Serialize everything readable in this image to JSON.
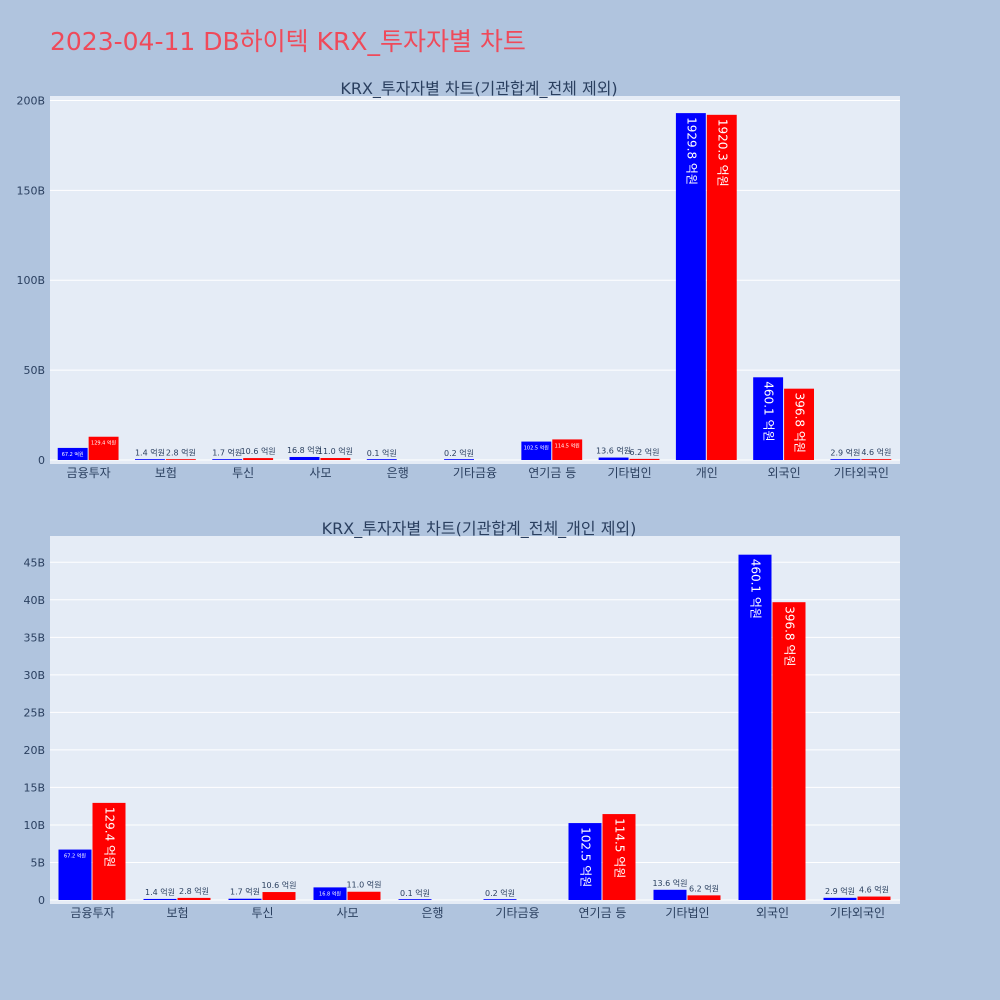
{
  "page_title": "2023-04-11 DB하이텍 KRX_투자자별 차트",
  "colors": {
    "series1": "#0000ff",
    "series2": "#ff0000",
    "plot_bg": "#e5ecf6",
    "page_bg": "#b0c4de",
    "title": "#ef4a5a"
  },
  "chart_data": [
    {
      "type": "bar",
      "title": "KRX_투자자별 차트(기관합계_전체 제외)",
      "categories": [
        "금융투자",
        "보험",
        "투신",
        "사모",
        "은행",
        "기타금융",
        "연기금 등",
        "기타법인",
        "개인",
        "외국인",
        "기타외국인"
      ],
      "series": [
        {
          "values": [
            6.72,
            0.14,
            0.17,
            1.68,
            0.01,
            0.02,
            10.25,
            1.36,
            192.98,
            46.01,
            0.29
          ],
          "labels": [
            "67.2 억원",
            "1.4 억원",
            "1.7 억원",
            "16.8 억원",
            "0.1 억원",
            "0.2 억원",
            "102.5 억원",
            "13.6 억원",
            "1929.8 억원",
            "460.1 억원",
            "2.9 억원"
          ]
        },
        {
          "values": [
            12.94,
            0.28,
            1.06,
            1.1,
            0,
            0,
            11.45,
            0.62,
            192.03,
            39.68,
            0.46
          ],
          "labels": [
            "129.4 억원",
            "2.8 억원",
            "10.6 억원",
            "11.0 억원",
            "",
            "",
            "114.5 억원",
            "6.2 억원",
            "1920.3 억원",
            "396.8 억원",
            "4.6 억원"
          ]
        }
      ],
      "yticks": [
        0,
        50,
        100,
        150,
        200
      ],
      "ytick_labels": [
        "0",
        "50B",
        "100B",
        "150B",
        "200B"
      ],
      "ylim": [
        0,
        202.5
      ],
      "grid": true
    },
    {
      "type": "bar",
      "title": "KRX_투자자별 차트(기관합계_전체_개인 제외)",
      "categories": [
        "금융투자",
        "보험",
        "투신",
        "사모",
        "은행",
        "기타금융",
        "연기금 등",
        "기타법인",
        "외국인",
        "기타외국인"
      ],
      "series": [
        {
          "values": [
            6.72,
            0.14,
            0.17,
            1.68,
            0.01,
            0.02,
            10.25,
            1.36,
            46.01,
            0.29
          ],
          "labels": [
            "67.2 억원",
            "1.4 억원",
            "1.7 억원",
            "16.8 억원",
            "0.1 억원",
            "0.2 억원",
            "102.5 억원",
            "13.6 억원",
            "460.1 억원",
            "2.9 억원"
          ]
        },
        {
          "values": [
            12.94,
            0.28,
            1.06,
            1.1,
            0,
            0,
            11.45,
            0.62,
            39.68,
            0.46
          ],
          "labels": [
            "129.4 억원",
            "2.8 억원",
            "10.6 억원",
            "11.0 억원",
            "",
            "",
            "114.5 억원",
            "6.2 억원",
            "396.8 억원",
            "4.6 억원"
          ]
        }
      ],
      "yticks": [
        0,
        5,
        10,
        15,
        20,
        25,
        30,
        35,
        40,
        45
      ],
      "ytick_labels": [
        "0",
        "5B",
        "10B",
        "15B",
        "20B",
        "25B",
        "30B",
        "35B",
        "40B",
        "45B"
      ],
      "ylim": [
        0,
        48.5
      ],
      "grid": true
    }
  ]
}
